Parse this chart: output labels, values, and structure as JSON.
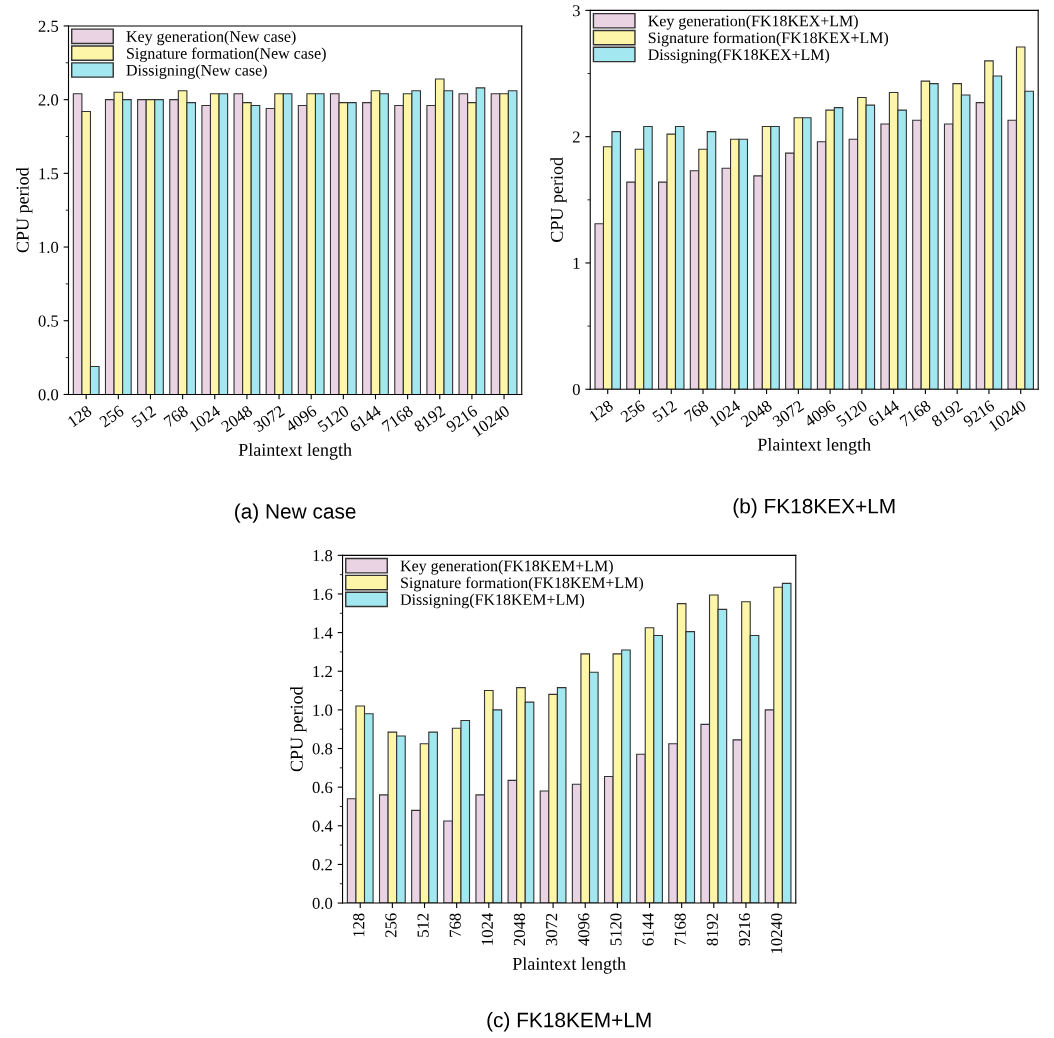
{
  "chart_data": [
    {
      "type": "bar",
      "xlabel": "Plaintext length",
      "ylabel": "CPU period",
      "categories": [
        "128",
        "256",
        "512",
        "768",
        "1024",
        "2048",
        "3072",
        "4096",
        "5120",
        "6144",
        "7168",
        "8192",
        "9216",
        "10240"
      ],
      "ylim": [
        0,
        2.5
      ],
      "yticks": [
        {
          "value": 0,
          "label": "0.0"
        },
        0.5,
        {
          "value": 1,
          "label": "1.0"
        },
        1.5,
        {
          "value": 2,
          "label": "2.0"
        },
        2.5
      ],
      "grid": false,
      "legend": "top left",
      "annotations": [
        "(a) New case"
      ],
      "series": [
        {
          "name": "Key generation(New case)",
          "color": "#ead3e3",
          "values": [
            2.04,
            2.0,
            2.0,
            2.0,
            1.96,
            2.04,
            1.94,
            1.96,
            2.04,
            1.98,
            1.96,
            1.96,
            2.04,
            2.04
          ]
        },
        {
          "name": "Signature formation(New case)",
          "color": "#fdf6a8",
          "values": [
            1.92,
            2.05,
            2.0,
            2.06,
            2.04,
            1.98,
            2.04,
            2.04,
            1.98,
            2.06,
            2.04,
            2.14,
            1.98,
            2.04
          ]
        },
        {
          "name": "Dissigning(New case)",
          "color": "#a3e8f0",
          "values": [
            0.19,
            2.0,
            2.0,
            1.98,
            2.04,
            1.96,
            2.04,
            2.04,
            1.98,
            2.04,
            2.06,
            2.06,
            2.08,
            2.06
          ]
        }
      ]
    },
    {
      "type": "bar",
      "xlabel": "Plaintext length",
      "ylabel": "CPU period",
      "categories": [
        "128",
        "256",
        "512",
        "768",
        "1024",
        "2048",
        "3072",
        "4096",
        "5120",
        "6144",
        "7168",
        "8192",
        "9216",
        "10240"
      ],
      "ylim": [
        0,
        3
      ],
      "yticks": [
        0,
        1,
        2,
        3
      ],
      "grid": false,
      "legend": "top left",
      "annotations": [
        "(b) FK18KEX+LM"
      ],
      "series": [
        {
          "name": "Key generation(FK18KEX+LM)",
          "color": "#ead3e3",
          "values": [
            1.31,
            1.64,
            1.64,
            1.73,
            1.75,
            1.69,
            1.87,
            1.96,
            1.98,
            2.1,
            2.13,
            2.1,
            2.27,
            2.13
          ]
        },
        {
          "name": "Signature formation(FK18KEX+LM)",
          "color": "#fdf6a8",
          "values": [
            1.92,
            1.9,
            2.02,
            1.9,
            1.98,
            2.08,
            2.15,
            2.21,
            2.31,
            2.35,
            2.44,
            2.42,
            2.6,
            2.71
          ]
        },
        {
          "name": "Dissigning(FK18KEX+LM)",
          "color": "#a3e8f0",
          "values": [
            2.04,
            2.08,
            2.08,
            2.04,
            1.98,
            2.08,
            2.15,
            2.23,
            2.25,
            2.21,
            2.42,
            2.33,
            2.48,
            2.36
          ]
        }
      ]
    },
    {
      "type": "bar",
      "xlabel": "Plaintext length",
      "ylabel": "CPU period",
      "categories": [
        "128",
        "256",
        "512",
        "768",
        "1024",
        "2048",
        "3072",
        "4096",
        "5120",
        "6144",
        "7168",
        "8192",
        "9216",
        "10240"
      ],
      "ylim": [
        0,
        1.8
      ],
      "yticks": [
        {
          "value": 0,
          "label": "0.0"
        },
        0.2,
        0.4,
        0.6,
        0.8,
        {
          "value": 1,
          "label": "1.0"
        },
        1.2,
        1.4,
        1.6,
        1.8
      ],
      "grid": false,
      "legend": "top left",
      "annotations": [
        "(c) FK18KEM+LM"
      ],
      "series": [
        {
          "name": "Key generation(FK18KEM+LM)",
          "color": "#ead3e3",
          "values": [
            0.54,
            0.56,
            0.48,
            0.425,
            0.56,
            0.635,
            0.58,
            0.615,
            0.655,
            0.77,
            0.825,
            0.925,
            0.845,
            1.0
          ]
        },
        {
          "name": "Signature formation(FK18KEM+LM)",
          "color": "#fdf6a8",
          "values": [
            1.02,
            0.885,
            0.825,
            0.905,
            1.1,
            1.115,
            1.08,
            1.29,
            1.29,
            1.425,
            1.55,
            1.595,
            1.56,
            1.635
          ]
        },
        {
          "name": "Dissigning(FK18KEM+LM)",
          "color": "#a3e8f0",
          "values": [
            0.98,
            0.865,
            0.885,
            0.945,
            1.0,
            1.04,
            1.115,
            1.195,
            1.31,
            1.385,
            1.405,
            1.52,
            1.385,
            1.655
          ]
        }
      ]
    }
  ]
}
